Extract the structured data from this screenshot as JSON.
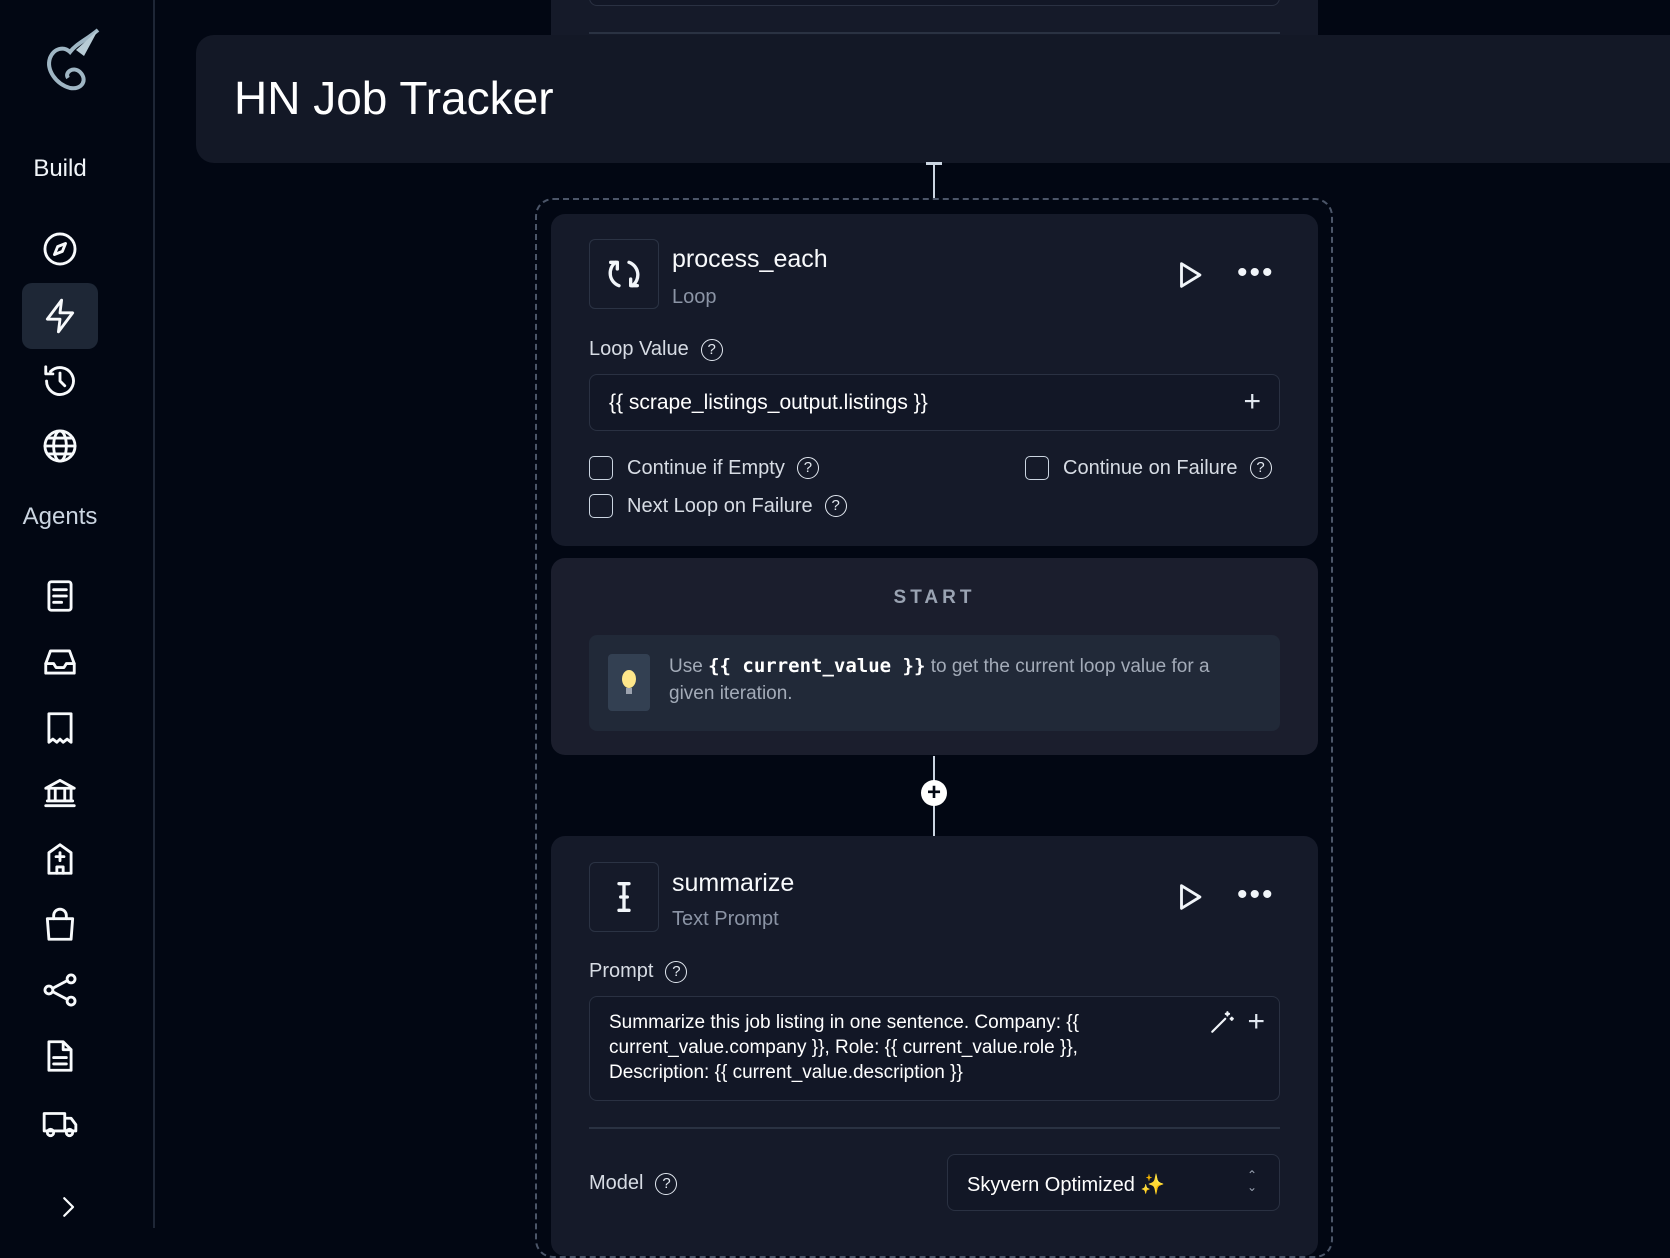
{
  "sidebar": {
    "logo": "dragon-logo",
    "build_label": "Build",
    "build_items": [
      {
        "icon": "compass-icon"
      },
      {
        "icon": "lightning-icon",
        "active": true
      },
      {
        "icon": "history-icon"
      },
      {
        "icon": "globe-icon"
      }
    ],
    "agents_label": "Agents",
    "agent_items": [
      {
        "icon": "document-icon"
      },
      {
        "icon": "inbox-icon"
      },
      {
        "icon": "receipt-icon"
      },
      {
        "icon": "bank-icon"
      },
      {
        "icon": "hospital-icon"
      },
      {
        "icon": "shopping-bag-icon"
      },
      {
        "icon": "share-icon"
      },
      {
        "icon": "file-text-icon"
      },
      {
        "icon": "truck-icon"
      }
    ],
    "expand_icon": "chevron-right-icon"
  },
  "header": {
    "title": "HN Job Tracker"
  },
  "loop_block": {
    "name": "process_each",
    "type": "Loop",
    "loop_value_label": "Loop Value",
    "loop_value": "{{ scrape_listings_output.listings }}",
    "checkboxes": [
      {
        "label": "Continue if Empty",
        "checked": false
      },
      {
        "label": "Continue on Failure",
        "checked": false
      },
      {
        "label": "Next Loop on Failure",
        "checked": false
      }
    ]
  },
  "start_block": {
    "label": "START",
    "tip_prefix": "Use",
    "tip_code": "{{ current_value }}",
    "tip_suffix": "to get the current loop value for a given iteration."
  },
  "summarize_block": {
    "name": "summarize",
    "type": "Text Prompt",
    "prompt_label": "Prompt",
    "prompt": "Summarize this job listing in one sentence. Company: {{ current_value.company }}, Role: {{ current_value.role }}, Description: {{ current_value.description }}",
    "model_label": "Model",
    "model_value": "Skyvern Optimized ✨"
  }
}
